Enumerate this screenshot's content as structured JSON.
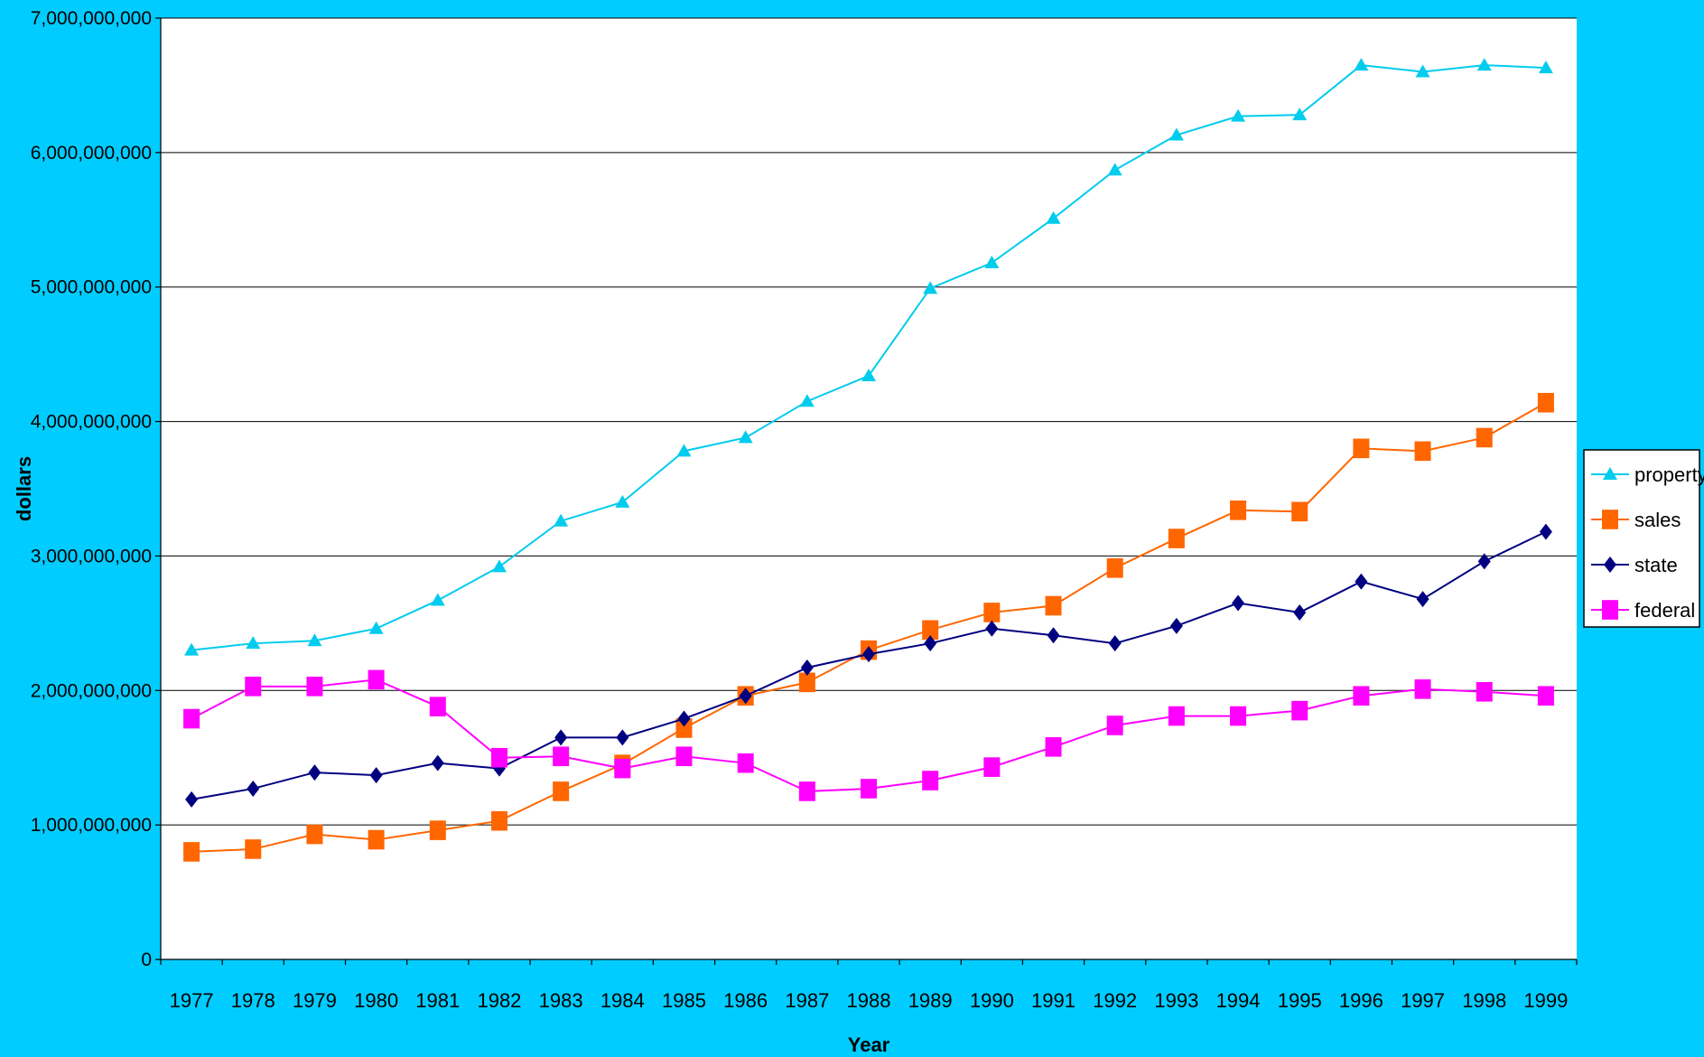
{
  "chart_data": {
    "type": "line",
    "xlabel": "Year",
    "ylabel": "dollars",
    "ylim": [
      0,
      7000000000
    ],
    "yticks": [
      0,
      1000000000,
      2000000000,
      3000000000,
      4000000000,
      5000000000,
      6000000000,
      7000000000
    ],
    "ytick_labels": [
      "0",
      "1,000,000,000",
      "2,000,000,000",
      "3,000,000,000",
      "4,000,000,000",
      "5,000,000,000",
      "6,000,000,000",
      "7,000,000,000"
    ],
    "categories": [
      "1977",
      "1978",
      "1979",
      "1980",
      "1981",
      "1982",
      "1983",
      "1984",
      "1985",
      "1986",
      "1987",
      "1988",
      "1989",
      "1990",
      "1991",
      "1992",
      "1993",
      "1994",
      "1995",
      "1996",
      "1997",
      "1998",
      "1999"
    ],
    "grid": true,
    "legend_position": "right",
    "background": "#FFFFFF",
    "frame_color": "#00CCFF",
    "series": [
      {
        "name": "property",
        "color": "#00CCEE",
        "marker": "triangle",
        "values": [
          2300000000,
          2350000000,
          2370000000,
          2460000000,
          2670000000,
          2920000000,
          3260000000,
          3400000000,
          3780000000,
          3880000000,
          4150000000,
          4340000000,
          4990000000,
          5180000000,
          5510000000,
          5870000000,
          6130000000,
          6270000000,
          6280000000,
          6650000000,
          6600000000,
          6650000000,
          6630000000
        ]
      },
      {
        "name": "sales",
        "color": "#FF6600",
        "marker": "square",
        "values": [
          800000000,
          820000000,
          930000000,
          890000000,
          960000000,
          1030000000,
          1250000000,
          1450000000,
          1720000000,
          1960000000,
          2060000000,
          2300000000,
          2450000000,
          2580000000,
          2630000000,
          2910000000,
          3130000000,
          3340000000,
          3330000000,
          3800000000,
          3780000000,
          3880000000,
          4140000000
        ]
      },
      {
        "name": "state",
        "color": "#000080",
        "marker": "diamond",
        "values": [
          1190000000,
          1270000000,
          1390000000,
          1370000000,
          1460000000,
          1420000000,
          1650000000,
          1650000000,
          1790000000,
          1960000000,
          2170000000,
          2270000000,
          2350000000,
          2460000000,
          2410000000,
          2350000000,
          2480000000,
          2650000000,
          2580000000,
          2810000000,
          2680000000,
          2960000000,
          3180000000
        ]
      },
      {
        "name": "federal",
        "color": "#FF00FF",
        "marker": "square",
        "values": [
          1790000000,
          2030000000,
          2030000000,
          2080000000,
          1880000000,
          1500000000,
          1510000000,
          1420000000,
          1510000000,
          1460000000,
          1250000000,
          1270000000,
          1330000000,
          1430000000,
          1580000000,
          1740000000,
          1810000000,
          1810000000,
          1850000000,
          1960000000,
          2010000000,
          1990000000,
          1960000000
        ]
      }
    ]
  }
}
